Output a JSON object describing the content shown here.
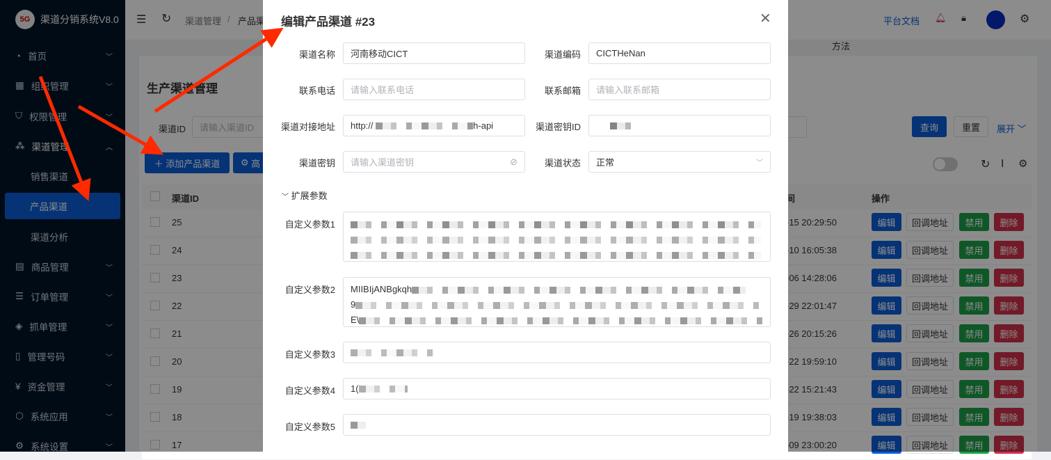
{
  "app": {
    "title": "渠道分销系统V8.0",
    "logo_text": "5G"
  },
  "sidebar": {
    "items": [
      {
        "label": "首页",
        "icon": "dashboard-icon"
      },
      {
        "label": "组织管理",
        "icon": "grid-icon"
      },
      {
        "label": "权限管理",
        "icon": "shield-icon"
      },
      {
        "label": "渠道管理",
        "icon": "network-icon",
        "expanded": true
      },
      {
        "label": "商品管理",
        "icon": "shop-icon"
      },
      {
        "label": "订单管理",
        "icon": "list-icon"
      },
      {
        "label": "抓单管理",
        "icon": "diamond-icon"
      },
      {
        "label": "管理号码",
        "icon": "phone-icon"
      },
      {
        "label": "资金管理",
        "icon": "money-icon"
      },
      {
        "label": "系统应用",
        "icon": "cube-icon"
      },
      {
        "label": "系统设置",
        "icon": "gear-icon"
      }
    ],
    "sub_items": [
      {
        "label": "销售渠道"
      },
      {
        "label": "产品渠道",
        "active": true
      },
      {
        "label": "渠道分析"
      }
    ]
  },
  "header": {
    "breadcrumb": [
      "渠道管理",
      "产品渠"
    ],
    "docs": "平台文档",
    "method_text": "方法"
  },
  "page": {
    "title": "生产渠道管理",
    "filter_label": "渠道ID",
    "filter_placeholder": "请输入渠道ID",
    "query": "查询",
    "reset": "重置",
    "expand": "展开",
    "add": "添加产品渠道",
    "advanced": "高"
  },
  "table": {
    "col_id": "渠道ID",
    "col_ops": "操作",
    "col_time_fragment": "间",
    "rows": [
      {
        "id": "25",
        "time": "-15 20:29:50"
      },
      {
        "id": "24",
        "time": "-10 16:05:38"
      },
      {
        "id": "23",
        "time": "-06 14:28:06"
      },
      {
        "id": "22",
        "time": "-29 22:01:47"
      },
      {
        "id": "21",
        "time": "-26 20:15:26"
      },
      {
        "id": "20",
        "time": "-22 19:59:10"
      },
      {
        "id": "19",
        "time": "-22 15:21:43"
      },
      {
        "id": "18",
        "time": "-19 19:38:03"
      },
      {
        "id": "17",
        "time": "-09 23:00:20"
      }
    ],
    "ops": {
      "edit": "编辑",
      "callback": "回调地址",
      "disable": "禁用",
      "delete": "删除"
    }
  },
  "modal": {
    "title": "编辑产品渠道 #23",
    "name_label": "渠道名称",
    "name_value": "河南移动CICT",
    "code_label": "渠道编码",
    "code_value": "CICTHeNan",
    "phone_label": "联系电话",
    "phone_placeholder": "请输入联系电话",
    "email_label": "联系邮箱",
    "email_placeholder": "请输入联系邮箱",
    "url_label": "渠道对接地址",
    "url_prefix": "http://",
    "url_suffix": "h-api",
    "keyid_label": "渠道密钥ID",
    "key_label": "渠道密钥",
    "key_placeholder": "请输入渠道密钥",
    "status_label": "渠道状态",
    "status_value": "正常",
    "ext_label": "扩展参数",
    "p1_label": "自定义参数1",
    "p2_label": "自定义参数2",
    "p2_prefix": "MIIBIjANBgkqh",
    "p2_line2": "9",
    "p2_line3": "E\\",
    "p3_label": "自定义参数3",
    "p4_label": "自定义参数4",
    "p4_prefix": "1(",
    "p5_label": "自定义参数5"
  },
  "colors": {
    "primary": "#0b5ed7",
    "success": "#1e9e4a",
    "danger": "#d0314a",
    "sidebar": "#001529",
    "annotation_arrow": "#ff2a00"
  }
}
